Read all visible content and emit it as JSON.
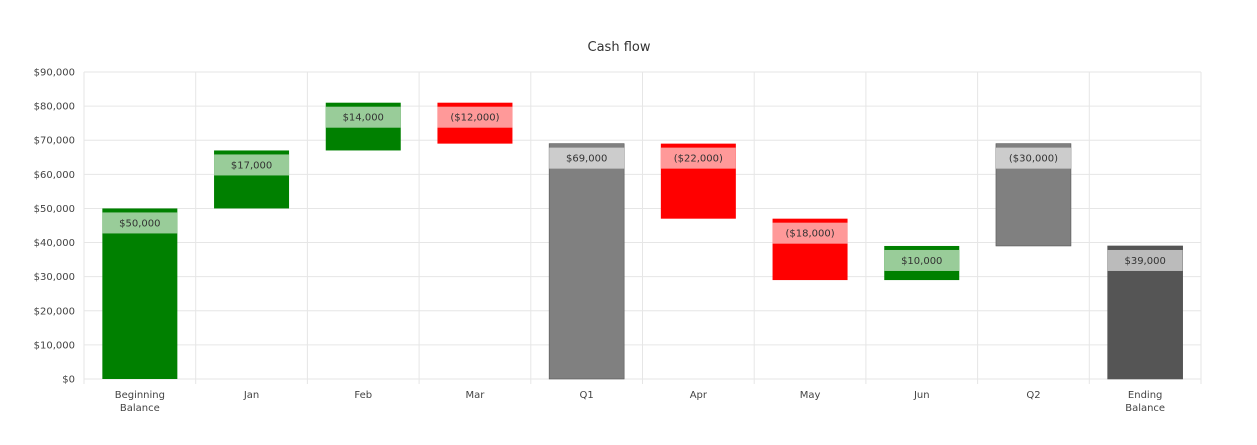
{
  "chart_data": {
    "type": "waterfall",
    "title": "Cash flow",
    "xlabel": "",
    "ylabel": "",
    "ylim": [
      0,
      90000
    ],
    "yticks": [
      0,
      10000,
      20000,
      30000,
      40000,
      50000,
      60000,
      70000,
      80000,
      90000
    ],
    "ytick_labels": [
      "$0",
      "$10,000",
      "$20,000",
      "$30,000",
      "$40,000",
      "$50,000",
      "$60,000",
      "$70,000",
      "$80,000",
      "$90,000"
    ],
    "grid": true,
    "legend": "none",
    "categories": [
      [
        "Beginning",
        "Balance"
      ],
      [
        "Jan"
      ],
      [
        "Feb"
      ],
      [
        "Mar"
      ],
      [
        "Q1"
      ],
      [
        "Apr"
      ],
      [
        "May"
      ],
      [
        "Jun"
      ],
      [
        "Q2"
      ],
      [
        "Ending",
        "Balance"
      ]
    ],
    "bars": [
      {
        "kind": "increase",
        "start": 0,
        "end": 50000,
        "label": "$50,000"
      },
      {
        "kind": "increase",
        "start": 50000,
        "end": 67000,
        "label": "$17,000"
      },
      {
        "kind": "increase",
        "start": 67000,
        "end": 81000,
        "label": "$14,000"
      },
      {
        "kind": "decrease",
        "start": 81000,
        "end": 69000,
        "label": "($12,000)"
      },
      {
        "kind": "subtotal",
        "start": 0,
        "end": 69000,
        "label": "$69,000"
      },
      {
        "kind": "decrease",
        "start": 69000,
        "end": 47000,
        "label": "($22,000)"
      },
      {
        "kind": "decrease",
        "start": 47000,
        "end": 29000,
        "label": "($18,000)"
      },
      {
        "kind": "increase",
        "start": 29000,
        "end": 39000,
        "label": "$10,000"
      },
      {
        "kind": "subtotal",
        "start": 69000,
        "end": 39000,
        "label": "($30,000)"
      },
      {
        "kind": "total",
        "start": 0,
        "end": 39000,
        "label": "$39,000"
      }
    ],
    "colors": {
      "increase": "#008000",
      "increase_label_bg": "#99cc99",
      "decrease": "#ff0000",
      "decrease_label_bg": "#ff9999",
      "subtotal": "#808080",
      "subtotal_label_bg": "#cccccc",
      "total": "#555555",
      "total_label_bg": "#bbbbbb"
    }
  }
}
